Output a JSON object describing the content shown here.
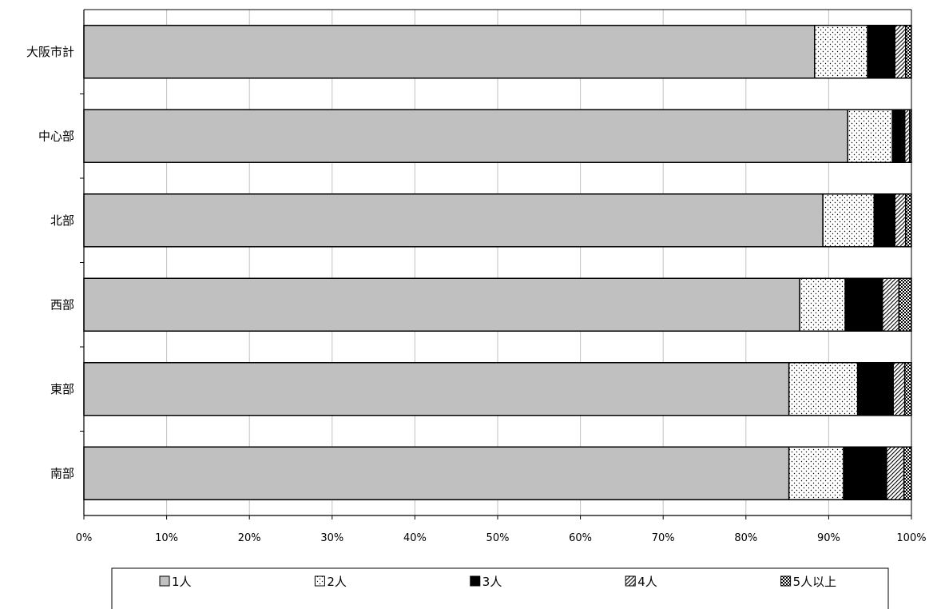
{
  "chart_data": {
    "type": "bar",
    "orientation": "horizontal",
    "stacked": true,
    "percent": true,
    "categories": [
      "大阪市計",
      "中心部",
      "北部",
      "西部",
      "東部",
      "南部"
    ],
    "series": [
      {
        "name": "1人",
        "values": [
          88.3,
          92.3,
          89.3,
          86.5,
          85.2,
          85.2
        ],
        "fill": "solid-gray"
      },
      {
        "name": "2人",
        "values": [
          6.4,
          5.4,
          6.2,
          5.5,
          8.3,
          6.6
        ],
        "fill": "dots"
      },
      {
        "name": "3人",
        "values": [
          3.3,
          1.5,
          2.5,
          4.5,
          4.3,
          5.2
        ],
        "fill": "solid-black"
      },
      {
        "name": "4人",
        "values": [
          1.3,
          0.6,
          1.3,
          2.0,
          1.4,
          2.1
        ],
        "fill": "diagonal-hatch"
      },
      {
        "name": "5人以上",
        "values": [
          0.7,
          0.2,
          0.7,
          1.5,
          0.8,
          0.9
        ],
        "fill": "checker"
      }
    ],
    "x_ticks": [
      "0%",
      "10%",
      "20%",
      "30%",
      "40%",
      "50%",
      "60%",
      "70%",
      "80%",
      "90%",
      "100%"
    ],
    "xlim": [
      0,
      100
    ],
    "grid": true,
    "legend_position": "bottom"
  },
  "colors": {
    "gray": "#c0c0c0",
    "black": "#000000",
    "grid": "#c0c0c0",
    "white": "#ffffff"
  }
}
